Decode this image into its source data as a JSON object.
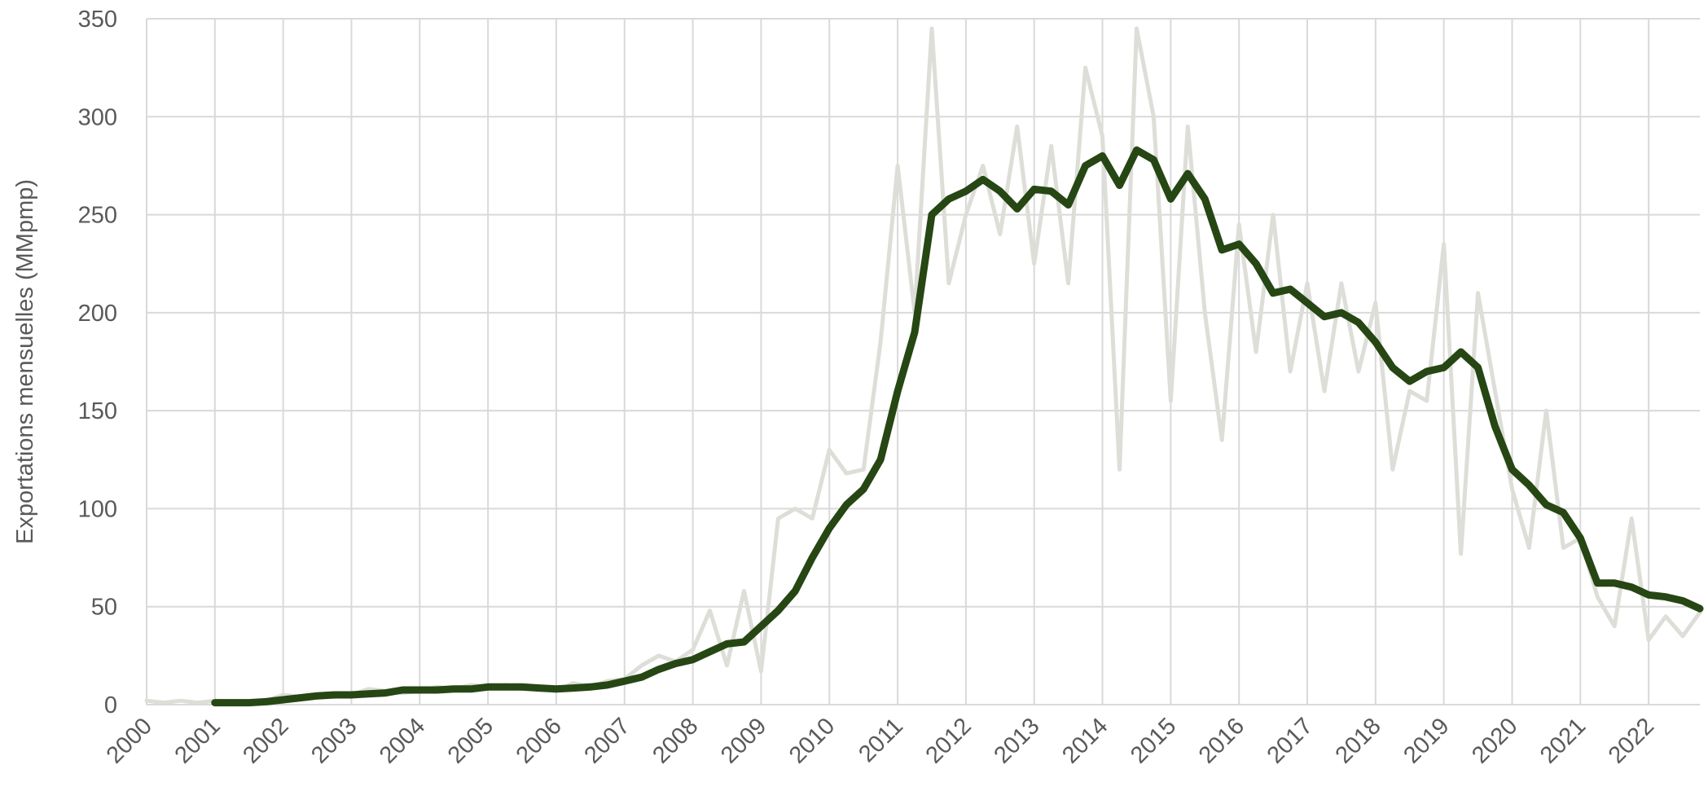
{
  "chart_data": {
    "type": "line",
    "y_label": "Exportations mensuelles (MMpmp)",
    "x": [
      2000,
      2000.25,
      2000.5,
      2000.75,
      2001,
      2001.25,
      2001.5,
      2001.75,
      2002,
      2002.25,
      2002.5,
      2002.75,
      2003,
      2003.25,
      2003.5,
      2003.75,
      2004,
      2004.25,
      2004.5,
      2004.75,
      2005,
      2005.25,
      2005.5,
      2005.75,
      2006,
      2006.25,
      2006.5,
      2006.75,
      2007,
      2007.25,
      2007.5,
      2007.75,
      2008,
      2008.25,
      2008.5,
      2008.75,
      2009,
      2009.25,
      2009.5,
      2009.75,
      2010,
      2010.25,
      2010.5,
      2010.75,
      2011,
      2011.25,
      2011.5,
      2011.75,
      2012,
      2012.25,
      2012.5,
      2012.75,
      2013,
      2013.25,
      2013.5,
      2013.75,
      2014,
      2014.25,
      2014.5,
      2014.75,
      2015,
      2015.25,
      2015.5,
      2015.75,
      2016,
      2016.25,
      2016.5,
      2016.75,
      2017,
      2017.25,
      2017.5,
      2017.75,
      2018,
      2018.25,
      2018.5,
      2018.75,
      2019,
      2019.25,
      2019.5,
      2019.75,
      2020,
      2020.25,
      2020.5,
      2020.75,
      2021,
      2021.25,
      2021.5,
      2021.75,
      2022,
      2022.25,
      2022.5,
      2022.75
    ],
    "series": [
      {
        "color": "#dcded7",
        "values": [
          2,
          1,
          2,
          1,
          2,
          1,
          1,
          2,
          5,
          4,
          5,
          4,
          5,
          8,
          7,
          6,
          7,
          9,
          8,
          10,
          9,
          10,
          8,
          9,
          7,
          11,
          9,
          12,
          13,
          20,
          25,
          22,
          28,
          48,
          20,
          58,
          17,
          95,
          100,
          95,
          130,
          118,
          120,
          185,
          275,
          200,
          345,
          215,
          250,
          275,
          240,
          295,
          225,
          285,
          215,
          325,
          290,
          120,
          345,
          300,
          155,
          295,
          200,
          135,
          245,
          180,
          250,
          170,
          215,
          160,
          215,
          170,
          205,
          120,
          160,
          155,
          235,
          77,
          210,
          160,
          110,
          80,
          150,
          80,
          85,
          55,
          40,
          95,
          33,
          45,
          35,
          47
        ]
      },
      {
        "color": "#264614",
        "values": [
          null,
          null,
          null,
          null,
          1,
          1,
          1,
          1.5,
          2.5,
          3.5,
          4.5,
          5,
          5,
          5.5,
          6,
          7.5,
          7.5,
          7.5,
          8,
          8,
          9,
          9,
          9,
          8.5,
          8,
          8.5,
          9,
          10,
          12,
          14,
          18,
          21,
          23,
          27,
          31,
          32,
          40,
          48,
          58,
          75,
          90,
          102,
          110,
          125,
          160,
          190,
          250,
          258,
          262,
          268,
          262,
          253,
          263,
          262,
          255,
          275,
          280,
          265,
          283,
          278,
          258,
          271,
          258,
          232,
          235,
          225,
          210,
          212,
          205,
          198,
          200,
          195,
          185,
          172,
          165,
          170,
          172,
          180,
          172,
          142,
          120,
          112,
          102,
          98,
          85,
          62,
          62,
          60,
          56,
          55,
          53,
          49
        ]
      }
    ],
    "xlim": [
      2000,
      2022.75
    ],
    "xticks": [
      2000,
      2001,
      2002,
      2003,
      2004,
      2005,
      2006,
      2007,
      2008,
      2009,
      2010,
      2011,
      2012,
      2013,
      2014,
      2015,
      2016,
      2017,
      2018,
      2019,
      2020,
      2021,
      2022
    ],
    "ylim": [
      0,
      350
    ],
    "yticks": [
      0,
      50,
      100,
      150,
      200,
      250,
      300,
      350
    ],
    "grid": true
  }
}
